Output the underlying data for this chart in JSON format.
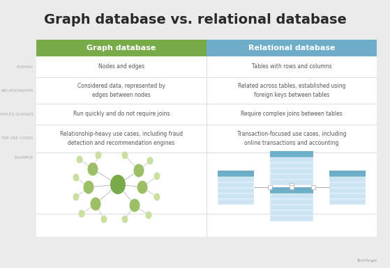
{
  "title": "Graph database vs. relational database",
  "background_color": "#ebebeb",
  "table_bg": "#ffffff",
  "col1_header": "Graph database",
  "col2_header": "Relational database",
  "col1_header_color": "#7aab4a",
  "col2_header_color": "#6eaec8",
  "row_label_color": "#aaaaaa",
  "row_labels": [
    "FORMAT",
    "RELATIONSHIPS",
    "COMPLEX QUERIES",
    "TOP USE CASES",
    "EXAMPLE"
  ],
  "col1_data": [
    "Nodes and edges",
    "Considered data, represented by\nedges between nodes",
    "Run quickly and do not require joins",
    "Relationship-heavy use cases, including fraud\ndetection and recommendation engines",
    ""
  ],
  "col2_data": [
    "Tables with rows and columns",
    "Related across tables, established using\nforeign keys between tables",
    "Require complex joins between tables",
    "Transaction-focused use cases, including\nonline transactions and accounting",
    ""
  ],
  "divider_color": "#d8d8d8",
  "text_color": "#555555",
  "title_color": "#2a2a2a",
  "watermark": "TechTarget"
}
